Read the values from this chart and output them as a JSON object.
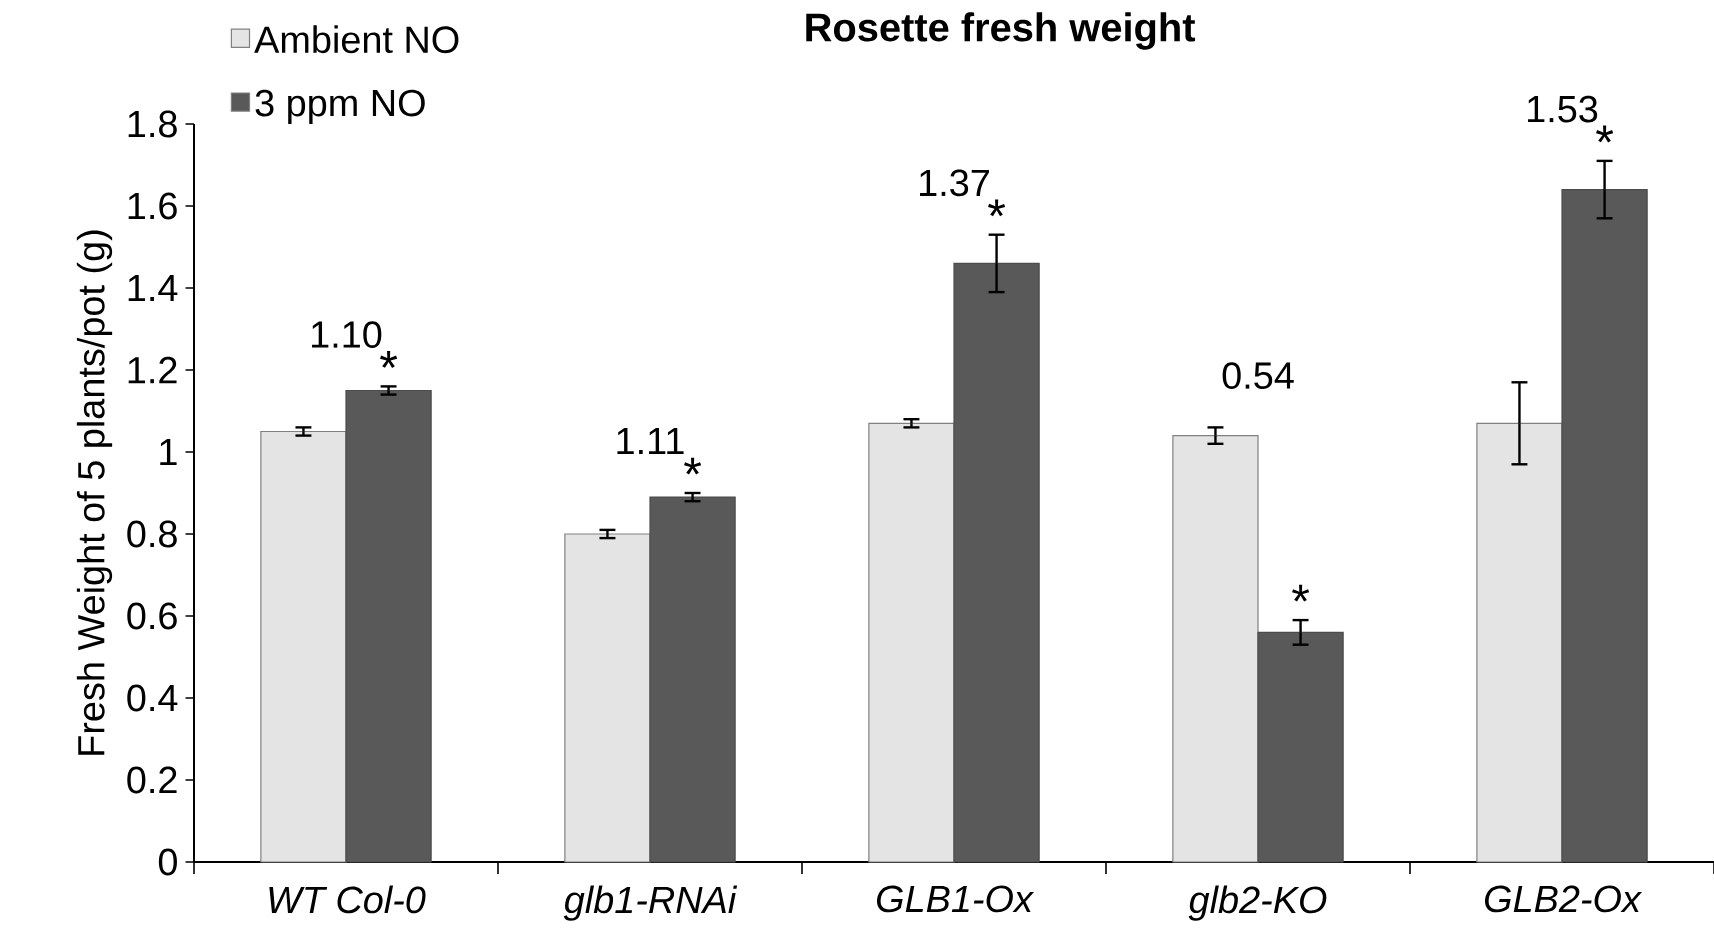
{
  "chart_data": {
    "type": "bar",
    "title": "Rosette fresh weight",
    "ylabel": "Fresh Weight of 5 plants/pot (g)",
    "categories": [
      "WT Col-0",
      "glb1-RNAi",
      "GLB1-Ox",
      "glb2-KO",
      "GLB2-Ox"
    ],
    "series": [
      {
        "name": "Ambient NO",
        "color": "#e4e4e4",
        "values": [
          1.05,
          0.8,
          1.07,
          1.04,
          1.07
        ],
        "errors": [
          0.01,
          0.01,
          0.01,
          0.02,
          0.1
        ]
      },
      {
        "name": "3 ppm NO",
        "color": "#595959",
        "values": [
          1.15,
          0.89,
          1.46,
          0.56,
          1.64
        ],
        "errors": [
          0.01,
          0.01,
          0.07,
          0.03,
          0.07
        ],
        "value_labels": [
          "*",
          "*",
          "*",
          "*",
          "*"
        ]
      }
    ],
    "annotations": [
      "1.10",
      "1.11",
      "1.37",
      "0.54",
      "1.53"
    ],
    "ylim": [
      0,
      1.8
    ],
    "yticks": [
      0,
      0.2,
      0.4,
      0.6,
      0.8,
      1,
      1.2,
      1.4,
      1.6,
      1.8
    ],
    "grid": false,
    "legend": "top left"
  }
}
